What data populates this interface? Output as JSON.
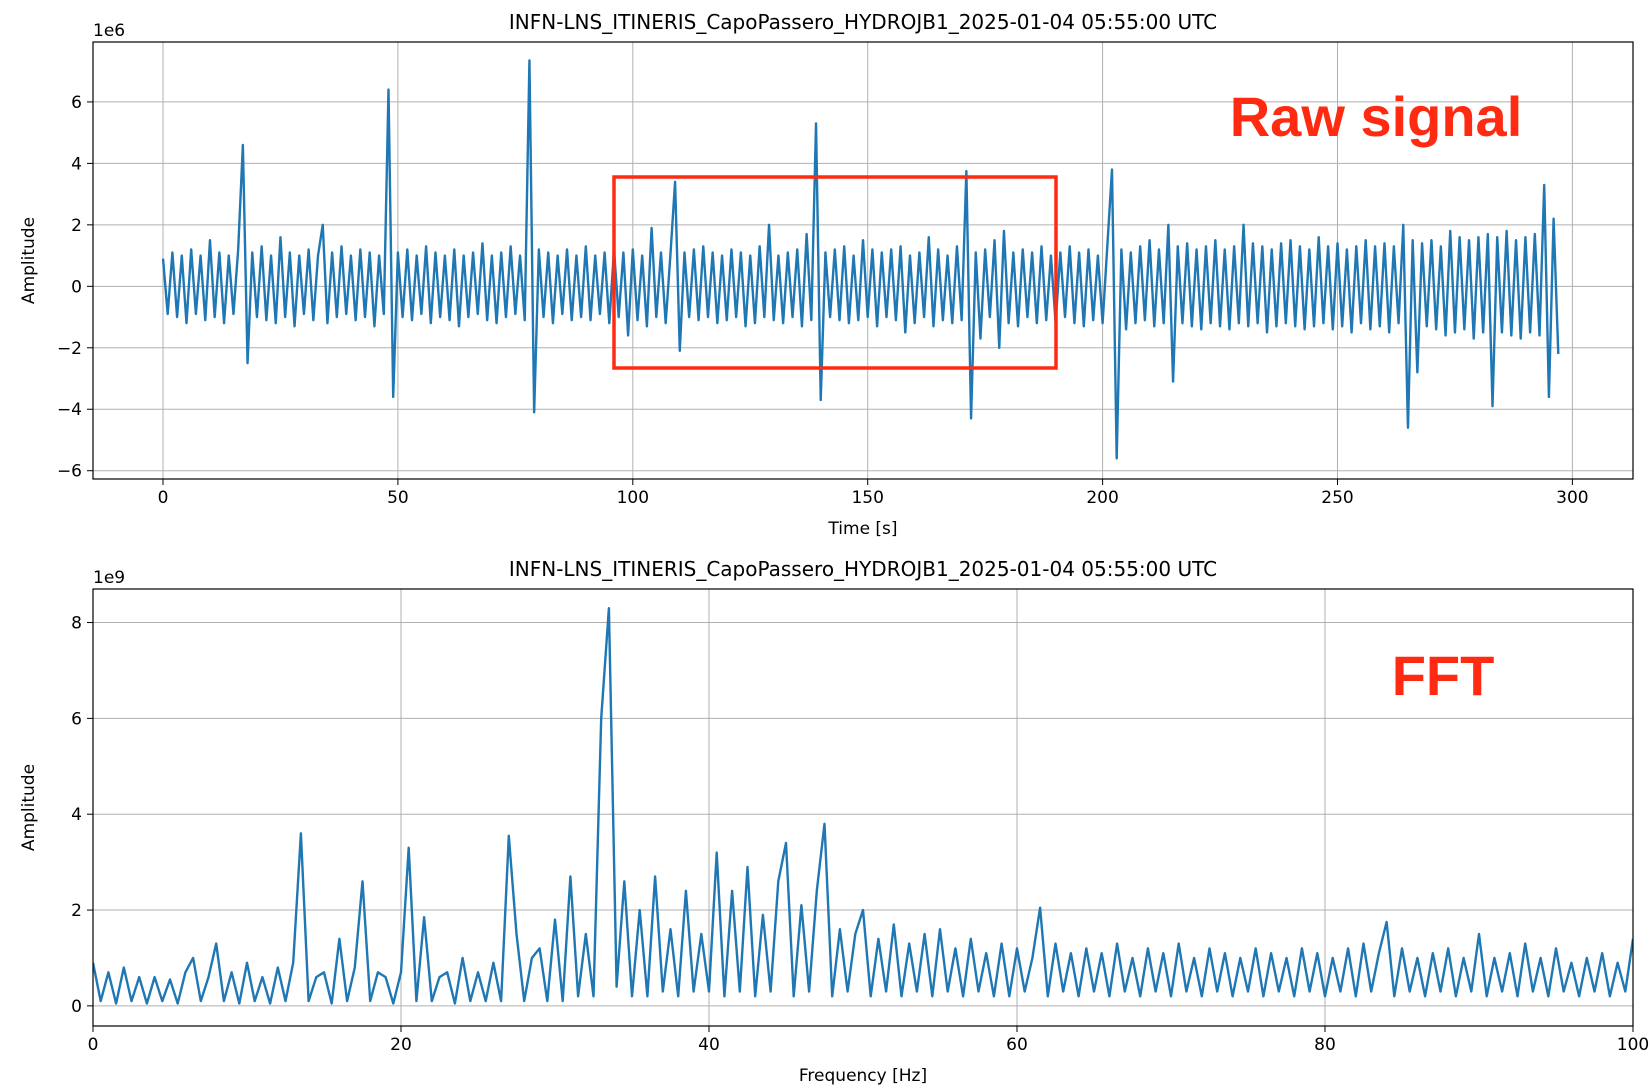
{
  "chart_data": [
    {
      "type": "line",
      "title": "INFN-LNS_ITINERIS_CapoPassero_HYDROJB1_2025-01-04 05:55:00 UTC",
      "xlabel": "Time [s]",
      "ylabel": "Amplitude",
      "y_offset_label": "1e6",
      "annotation": "Raw signal",
      "color": "#1f77b4",
      "grid": true,
      "xlim": [
        -14.9,
        312.9
      ],
      "ylim": [
        -6.27,
        7.95
      ],
      "xticks": [
        0,
        50,
        100,
        150,
        200,
        250,
        300
      ],
      "yticks": [
        {
          "value": -6,
          "label": "−6"
        },
        {
          "value": -4,
          "label": "−4"
        },
        {
          "value": -2,
          "label": "−2"
        },
        0,
        2,
        4,
        6
      ],
      "x": [
        0,
        1,
        2,
        3,
        4,
        5,
        6,
        7,
        8,
        9,
        10,
        11,
        12,
        13,
        14,
        15,
        16,
        17,
        18,
        19,
        20,
        21,
        22,
        23,
        24,
        25,
        26,
        27,
        28,
        29,
        30,
        31,
        32,
        33,
        34,
        35,
        36,
        37,
        38,
        39,
        40,
        41,
        42,
        43,
        44,
        45,
        46,
        47,
        48,
        49,
        50,
        51,
        52,
        53,
        54,
        55,
        56,
        57,
        58,
        59,
        60,
        61,
        62,
        63,
        64,
        65,
        66,
        67,
        68,
        69,
        70,
        71,
        72,
        73,
        74,
        75,
        76,
        77,
        78,
        79,
        80,
        81,
        82,
        83,
        84,
        85,
        86,
        87,
        88,
        89,
        90,
        91,
        92,
        93,
        94,
        95,
        96,
        97,
        98,
        99,
        100,
        101,
        102,
        103,
        104,
        105,
        106,
        107,
        108,
        109,
        110,
        111,
        112,
        113,
        114,
        115,
        116,
        117,
        118,
        119,
        120,
        121,
        122,
        123,
        124,
        125,
        126,
        127,
        128,
        129,
        130,
        131,
        132,
        133,
        134,
        135,
        136,
        137,
        138,
        139,
        140,
        141,
        142,
        143,
        144,
        145,
        146,
        147,
        148,
        149,
        150,
        151,
        152,
        153,
        154,
        155,
        156,
        157,
        158,
        159,
        160,
        161,
        162,
        163,
        164,
        165,
        166,
        167,
        168,
        169,
        170,
        171,
        172,
        173,
        174,
        175,
        176,
        177,
        178,
        179,
        180,
        181,
        182,
        183,
        184,
        185,
        186,
        187,
        188,
        189,
        190,
        191,
        192,
        193,
        194,
        195,
        196,
        197,
        198,
        199,
        200,
        201,
        202,
        203,
        204,
        205,
        206,
        207,
        208,
        209,
        210,
        211,
        212,
        213,
        214,
        215,
        216,
        217,
        218,
        219,
        220,
        221,
        222,
        223,
        224,
        225,
        226,
        227,
        228,
        229,
        230,
        231,
        232,
        233,
        234,
        235,
        236,
        237,
        238,
        239,
        240,
        241,
        242,
        243,
        244,
        245,
        246,
        247,
        248,
        249,
        250,
        251,
        252,
        253,
        254,
        255,
        256,
        257,
        258,
        259,
        260,
        261,
        262,
        263,
        264,
        265,
        266,
        267,
        268,
        269,
        270,
        271,
        272,
        273,
        274,
        275,
        276,
        277,
        278,
        279,
        280,
        281,
        282,
        283,
        284,
        285,
        286,
        287,
        288,
        289,
        290,
        291,
        292,
        293,
        294,
        295,
        296,
        297
      ],
      "values": [
        0.9,
        -0.9,
        1.1,
        -1.0,
        1.0,
        -1.2,
        1.2,
        -0.9,
        1.0,
        -1.1,
        1.5,
        -1.0,
        1.1,
        -1.2,
        1.0,
        -0.9,
        1.2,
        4.6,
        -2.5,
        1.1,
        -1.0,
        1.3,
        -1.1,
        1.0,
        -1.2,
        1.6,
        -1.0,
        1.1,
        -1.3,
        1.0,
        -0.9,
        1.2,
        -1.1,
        1.0,
        2.0,
        -1.2,
        1.1,
        -1.0,
        1.3,
        -0.9,
        1.0,
        -1.1,
        1.2,
        -1.0,
        1.1,
        -1.3,
        1.0,
        -0.9,
        6.4,
        -3.6,
        1.1,
        -1.0,
        1.2,
        -1.1,
        1.0,
        -0.9,
        1.3,
        -1.2,
        1.1,
        -1.0,
        1.0,
        -1.1,
        1.2,
        -1.3,
        1.0,
        -1.0,
        1.1,
        -0.9,
        1.4,
        -1.1,
        1.0,
        -1.2,
        1.1,
        -1.0,
        1.3,
        -0.9,
        1.0,
        -1.1,
        7.35,
        -4.1,
        1.2,
        -1.0,
        1.1,
        -1.2,
        1.0,
        -0.9,
        1.2,
        -1.1,
        1.0,
        -1.0,
        1.3,
        -1.1,
        1.0,
        -0.9,
        1.1,
        -1.2,
        1.2,
        -1.0,
        1.1,
        -1.6,
        1.2,
        -1.1,
        1.0,
        -1.3,
        1.9,
        -1.0,
        1.1,
        -1.2,
        1.0,
        3.4,
        -2.1,
        1.1,
        -1.0,
        1.2,
        -1.1,
        1.3,
        -1.0,
        1.1,
        -1.2,
        1.0,
        -1.1,
        1.2,
        -1.0,
        1.1,
        -1.3,
        1.0,
        -1.2,
        1.3,
        -1.0,
        2.0,
        -1.1,
        1.0,
        -1.2,
        1.1,
        -1.0,
        1.2,
        -1.3,
        1.7,
        -1.1,
        5.3,
        -3.7,
        1.1,
        -1.0,
        1.2,
        -1.1,
        1.3,
        -1.2,
        1.0,
        -1.1,
        1.5,
        -1.0,
        1.2,
        -1.3,
        1.1,
        -1.0,
        1.2,
        -1.1,
        1.3,
        -1.5,
        1.0,
        -1.2,
        1.1,
        -1.0,
        1.6,
        -1.3,
        1.2,
        -1.1,
        1.0,
        -1.2,
        1.3,
        -1.1,
        3.75,
        -4.3,
        1.1,
        -1.7,
        1.2,
        -1.0,
        1.5,
        -2.0,
        1.8,
        -1.2,
        1.1,
        -1.3,
        1.2,
        -1.0,
        1.1,
        -1.2,
        1.3,
        -1.1,
        1.0,
        -1.2,
        1.1,
        -1.0,
        1.3,
        -1.2,
        1.1,
        -1.3,
        1.2,
        -1.1,
        1.0,
        -1.2,
        1.3,
        3.8,
        -5.6,
        1.2,
        -1.4,
        1.1,
        -1.2,
        1.3,
        -1.1,
        1.5,
        -1.3,
        1.2,
        -1.2,
        2.0,
        -3.1,
        1.3,
        -1.2,
        1.4,
        -1.3,
        1.2,
        -1.4,
        1.3,
        -1.2,
        1.5,
        -1.3,
        1.2,
        -1.4,
        1.3,
        -1.2,
        2.0,
        -1.3,
        1.4,
        -1.2,
        1.3,
        -1.5,
        1.2,
        -1.3,
        1.4,
        -1.2,
        1.5,
        -1.3,
        1.3,
        -1.4,
        1.2,
        -1.3,
        1.6,
        -1.2,
        1.3,
        -1.4,
        1.4,
        -1.3,
        1.2,
        -1.5,
        1.3,
        -1.2,
        1.5,
        -1.4,
        1.3,
        -1.3,
        1.4,
        -1.5,
        1.3,
        -1.2,
        2.0,
        -4.6,
        1.5,
        -2.8,
        1.4,
        -1.3,
        1.5,
        -1.4,
        1.3,
        -1.6,
        1.8,
        -1.5,
        1.6,
        -1.4,
        1.5,
        -1.7,
        1.6,
        -1.5,
        1.7,
        -3.9,
        1.6,
        -1.5,
        1.8,
        -1.6,
        1.5,
        -1.7,
        1.6,
        -1.5,
        1.7,
        -1.6,
        3.3,
        -3.6,
        2.2,
        -2.2
      ]
    },
    {
      "type": "line",
      "title": "INFN-LNS_ITINERIS_CapoPassero_HYDROJB1_2025-01-04 05:55:00 UTC",
      "xlabel": "Frequency [Hz]",
      "ylabel": "Amplitude",
      "y_offset_label": "1e9",
      "annotation": "FFT",
      "color": "#1f77b4",
      "grid": true,
      "xlim": [
        0,
        100
      ],
      "ylim": [
        -0.42,
        8.7
      ],
      "xticks": [
        0,
        20,
        40,
        60,
        80,
        100
      ],
      "yticks": [
        0,
        2,
        4,
        6,
        8
      ],
      "x": [
        0,
        0.5,
        1,
        1.5,
        2,
        2.5,
        3,
        3.5,
        4,
        4.5,
        5,
        5.5,
        6,
        6.5,
        7,
        7.5,
        8,
        8.5,
        9,
        9.5,
        10,
        10.5,
        11,
        11.5,
        12,
        12.5,
        13,
        13.5,
        14,
        14.5,
        15,
        15.5,
        16,
        16.5,
        17,
        17.5,
        18,
        18.5,
        19,
        19.5,
        20,
        20.5,
        21,
        21.5,
        22,
        22.5,
        23,
        23.5,
        24,
        24.5,
        25,
        25.5,
        26,
        26.5,
        27,
        27.5,
        28,
        28.5,
        29,
        29.5,
        30,
        30.5,
        31,
        31.5,
        32,
        32.5,
        33,
        33.5,
        34,
        34.5,
        35,
        35.5,
        36,
        36.5,
        37,
        37.5,
        38,
        38.5,
        39,
        39.5,
        40,
        40.5,
        41,
        41.5,
        42,
        42.5,
        43,
        43.5,
        44,
        44.5,
        45,
        45.5,
        46,
        46.5,
        47,
        47.5,
        48,
        48.5,
        49,
        49.5,
        50,
        50.5,
        51,
        51.5,
        52,
        52.5,
        53,
        53.5,
        54,
        54.5,
        55,
        55.5,
        56,
        56.5,
        57,
        57.5,
        58,
        58.5,
        59,
        59.5,
        60,
        60.5,
        61,
        61.5,
        62,
        62.5,
        63,
        63.5,
        64,
        64.5,
        65,
        65.5,
        66,
        66.5,
        67,
        67.5,
        68,
        68.5,
        69,
        69.5,
        70,
        70.5,
        71,
        71.5,
        72,
        72.5,
        73,
        73.5,
        74,
        74.5,
        75,
        75.5,
        76,
        76.5,
        77,
        77.5,
        78,
        78.5,
        79,
        79.5,
        80,
        80.5,
        81,
        81.5,
        82,
        82.5,
        83,
        83.5,
        84,
        84.5,
        85,
        85.5,
        86,
        86.5,
        87,
        87.5,
        88,
        88.5,
        89,
        89.5,
        90,
        90.5,
        91,
        91.5,
        92,
        92.5,
        93,
        93.5,
        94,
        94.5,
        95,
        95.5,
        96,
        96.5,
        97,
        97.5,
        98,
        98.5,
        99,
        99.5,
        100
      ],
      "values": [
        0.9,
        0.1,
        0.7,
        0.05,
        0.8,
        0.1,
        0.6,
        0.05,
        0.6,
        0.1,
        0.55,
        0.05,
        0.7,
        1.0,
        0.1,
        0.6,
        1.3,
        0.1,
        0.7,
        0.05,
        0.9,
        0.1,
        0.6,
        0.05,
        0.8,
        0.1,
        0.9,
        3.6,
        0.1,
        0.6,
        0.7,
        0.05,
        1.4,
        0.1,
        0.8,
        2.6,
        0.1,
        0.7,
        0.6,
        0.05,
        0.7,
        3.3,
        0.1,
        1.85,
        0.1,
        0.6,
        0.7,
        0.05,
        1.0,
        0.1,
        0.7,
        0.1,
        0.9,
        0.1,
        3.55,
        1.5,
        0.1,
        1.0,
        1.2,
        0.1,
        1.8,
        0.1,
        2.7,
        0.2,
        1.5,
        0.2,
        6.0,
        8.3,
        0.4,
        2.6,
        0.2,
        2.0,
        0.2,
        2.7,
        0.3,
        1.6,
        0.2,
        2.4,
        0.3,
        1.5,
        0.3,
        3.2,
        0.2,
        2.4,
        0.3,
        2.9,
        0.2,
        1.9,
        0.3,
        2.6,
        3.4,
        0.2,
        2.1,
        0.3,
        2.4,
        3.8,
        0.2,
        1.6,
        0.3,
        1.5,
        2.0,
        0.2,
        1.4,
        0.3,
        1.7,
        0.2,
        1.3,
        0.3,
        1.5,
        0.2,
        1.6,
        0.3,
        1.2,
        0.2,
        1.4,
        0.3,
        1.1,
        0.2,
        1.3,
        0.2,
        1.2,
        0.3,
        1.0,
        2.05,
        0.2,
        1.3,
        0.3,
        1.1,
        0.2,
        1.2,
        0.3,
        1.1,
        0.2,
        1.3,
        0.3,
        1.0,
        0.2,
        1.2,
        0.3,
        1.1,
        0.2,
        1.3,
        0.3,
        1.0,
        0.2,
        1.2,
        0.3,
        1.1,
        0.2,
        1.0,
        0.3,
        1.2,
        0.2,
        1.1,
        0.3,
        1.0,
        0.2,
        1.2,
        0.3,
        1.1,
        0.2,
        1.0,
        0.3,
        1.2,
        0.2,
        1.3,
        0.3,
        1.1,
        1.75,
        0.2,
        1.2,
        0.3,
        1.0,
        0.2,
        1.1,
        0.3,
        1.2,
        0.2,
        1.0,
        0.3,
        1.5,
        0.2,
        1.0,
        0.3,
        1.1,
        0.2,
        1.3,
        0.3,
        1.0,
        0.2,
        1.2,
        0.3,
        0.9,
        0.2,
        1.0,
        0.3,
        1.1,
        0.2,
        0.9,
        0.3,
        1.4
      ]
    }
  ]
}
